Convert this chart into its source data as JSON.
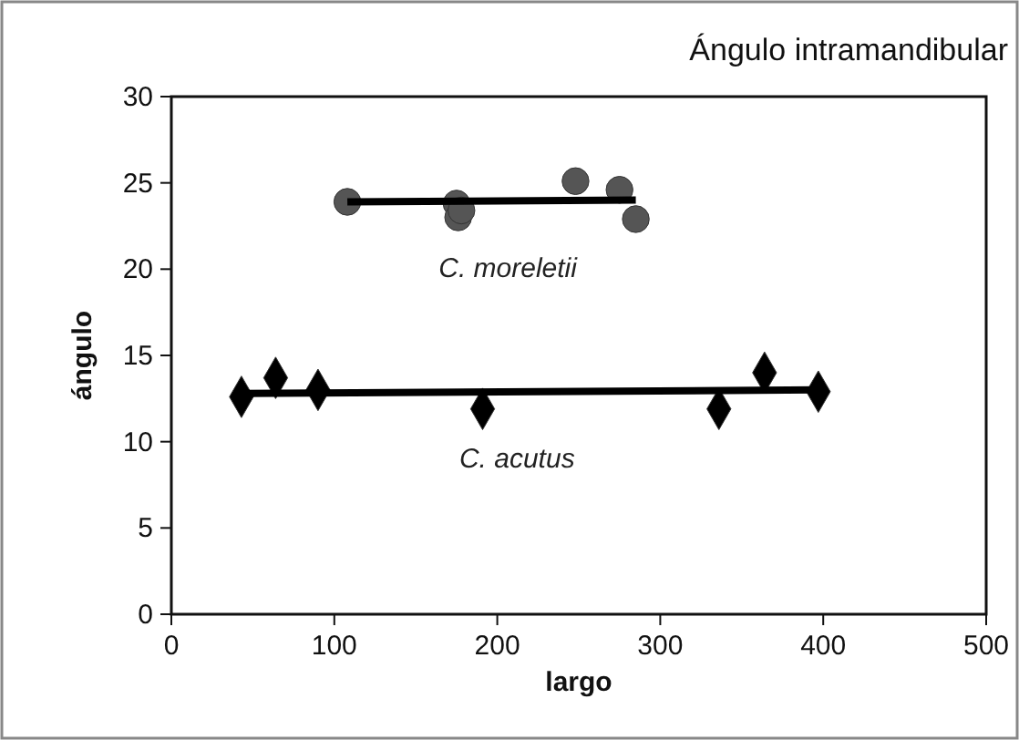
{
  "chart_data": {
    "type": "scatter",
    "title": "Ángulo intramandibular",
    "xlabel": "largo",
    "ylabel": "ángulo",
    "xlim": [
      0,
      500
    ],
    "xticks": [
      0,
      100,
      200,
      300,
      400,
      500
    ],
    "ylim": [
      0,
      30
    ],
    "yticks": [
      0,
      5,
      10,
      15,
      20,
      25,
      30
    ],
    "grid": false,
    "series": [
      {
        "name": "C. moreletii",
        "marker": "circle",
        "color": "#555555",
        "x": [
          108,
          175,
          176,
          178,
          248,
          275,
          285
        ],
        "values": [
          23.9,
          23.8,
          23.0,
          23.4,
          25.1,
          24.6,
          22.9
        ]
      },
      {
        "type": "line",
        "marker": "none",
        "color": "#000000",
        "x": [
          108,
          285
        ],
        "values": [
          23.9,
          24.0
        ]
      },
      {
        "name": "C. acutus",
        "marker": "diamond",
        "color": "#000000",
        "x": [
          43,
          64,
          90,
          191,
          336,
          364,
          397
        ],
        "values": [
          12.6,
          13.7,
          13.0,
          11.9,
          11.9,
          14.0,
          12.9
        ]
      },
      {
        "type": "line",
        "marker": "none",
        "color": "#000000",
        "x": [
          43,
          397
        ],
        "values": [
          12.8,
          13.0
        ]
      }
    ]
  }
}
